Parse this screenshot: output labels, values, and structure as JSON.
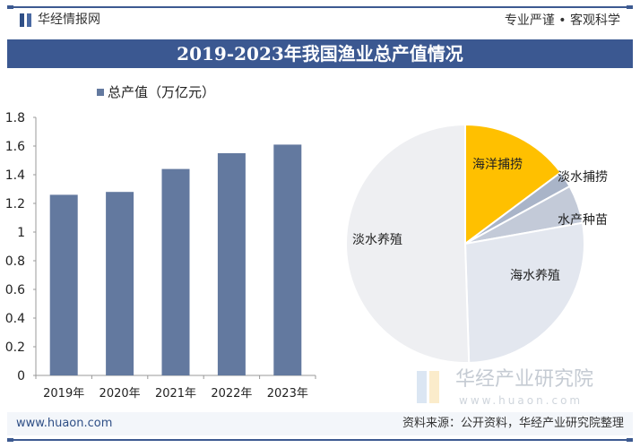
{
  "header": {
    "brand": "华经情报网",
    "slogan": "专业严谨 • 客观科学",
    "title": "2019-2023年我国渔业总产值情况"
  },
  "footer": {
    "website": "www.huaon.com",
    "source": "资料来源：公开资料，华经产业研究院整理"
  },
  "watermark": {
    "name": "华经产业研究院",
    "url": "www.huaon.com"
  },
  "colors": {
    "brand": "#3b5891",
    "bar": "#63799f",
    "highlight": "#ffc000"
  },
  "chart_data": [
    {
      "type": "bar",
      "legend": "总产值（万亿元）",
      "categories": [
        "2019年",
        "2020年",
        "2021年",
        "2022年",
        "2023年"
      ],
      "values": [
        1.26,
        1.28,
        1.44,
        1.55,
        1.61
      ],
      "ylim": [
        0,
        1.8
      ],
      "yticks": [
        "0",
        "0.2",
        "0.4",
        "0.6",
        "0.8",
        "1",
        "1.2",
        "1.4",
        "1.6",
        "1.8"
      ],
      "grid": false,
      "legend_position": "top-left"
    },
    {
      "type": "pie",
      "slices": [
        {
          "label": "海洋捕捞",
          "value": 14.8,
          "color": "#ffc000"
        },
        {
          "label": "淡水捕捞",
          "value": 2.2,
          "color": "#a9b4c8"
        },
        {
          "label": "水产种苗",
          "value": 5.2,
          "color": "#c3cad8"
        },
        {
          "label": "海水养殖",
          "value": 27.3,
          "color": "#e3e7ef"
        },
        {
          "label": "淡水养殖",
          "value": 50.5,
          "color": "#eeeff2"
        }
      ]
    }
  ]
}
